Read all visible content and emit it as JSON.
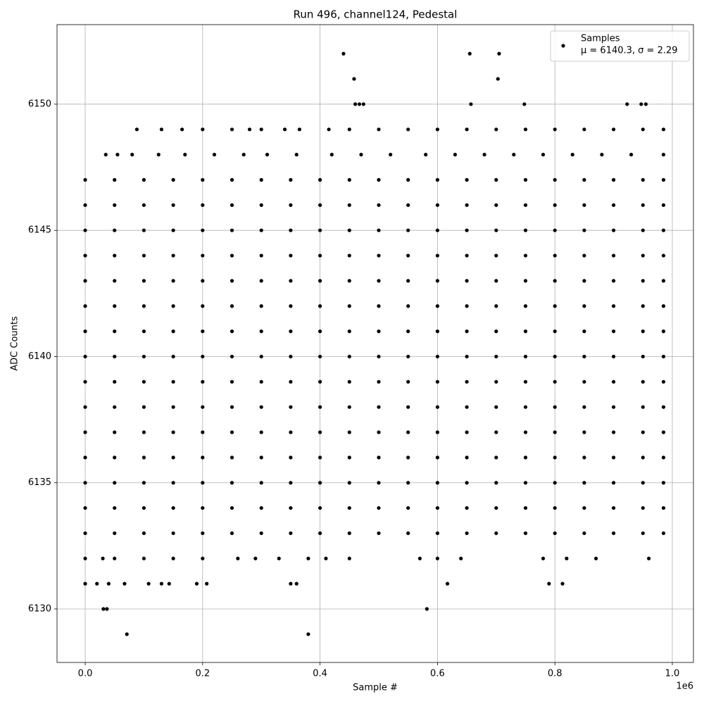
{
  "chart_data": {
    "type": "scatter",
    "title": "Run 496, channel124, Pedestal",
    "x_label": "Sample #",
    "y_label": "ADC Counts",
    "x_offset_label": "1e6",
    "legend_note": "μ = 6140.3, σ = 2.29",
    "legend_loc": "upper right",
    "grid": true,
    "xlim": [
      -0.048,
      1.036
    ],
    "ylim": [
      6127.88,
      6153.15
    ],
    "xticks": [
      {
        "value": 0,
        "label": "0.0"
      },
      0.2,
      0.4,
      0.6,
      0.8,
      {
        "value": 1,
        "label": "1.0"
      }
    ],
    "yticks": [
      6130,
      6135,
      6140,
      6145,
      6150
    ],
    "series": [
      {
        "name": "Samples",
        "color": "#000000",
        "x": [
          0.071,
          0.38,
          0.031,
          0.037,
          0.582,
          0,
          0.02,
          0.04,
          0.067,
          0.108,
          0.13,
          0.143,
          0.19,
          0.207,
          0.35,
          0.36,
          0.617,
          0.79,
          0.813,
          0,
          0.03,
          0.05,
          0.1,
          0.15,
          0.2,
          0.26,
          0.29,
          0.33,
          0.38,
          0.41,
          0.45,
          0.57,
          0.6,
          0.64,
          0.78,
          0.82,
          0.87,
          0.96,
          0,
          0.05,
          0.1,
          0.15,
          0.2,
          0.25,
          0.3,
          0.35,
          0.4,
          0.45,
          0.5,
          0.55,
          0.6,
          0.65,
          0.7,
          0.75,
          0.8,
          0.85,
          0.9,
          0.95,
          0.985,
          0,
          0.05,
          0.1,
          0.15,
          0.2,
          0.25,
          0.3,
          0.35,
          0.4,
          0.45,
          0.5,
          0.55,
          0.6,
          0.65,
          0.7,
          0.75,
          0.8,
          0.85,
          0.9,
          0.95,
          0.985,
          0,
          0.05,
          0.1,
          0.15,
          0.2,
          0.25,
          0.3,
          0.35,
          0.4,
          0.45,
          0.5,
          0.55,
          0.6,
          0.65,
          0.7,
          0.75,
          0.8,
          0.85,
          0.9,
          0.95,
          0.985,
          0,
          0.05,
          0.1,
          0.15,
          0.2,
          0.25,
          0.3,
          0.35,
          0.4,
          0.45,
          0.5,
          0.55,
          0.6,
          0.65,
          0.7,
          0.75,
          0.8,
          0.85,
          0.9,
          0.95,
          0.985,
          0,
          0.05,
          0.1,
          0.15,
          0.2,
          0.25,
          0.3,
          0.35,
          0.4,
          0.45,
          0.5,
          0.55,
          0.6,
          0.65,
          0.7,
          0.75,
          0.8,
          0.85,
          0.9,
          0.95,
          0.985,
          0,
          0.05,
          0.1,
          0.15,
          0.2,
          0.25,
          0.3,
          0.35,
          0.4,
          0.45,
          0.5,
          0.55,
          0.6,
          0.65,
          0.7,
          0.75,
          0.8,
          0.85,
          0.9,
          0.95,
          0.985,
          0,
          0.05,
          0.1,
          0.15,
          0.2,
          0.25,
          0.3,
          0.35,
          0.4,
          0.45,
          0.5,
          0.55,
          0.6,
          0.65,
          0.7,
          0.75,
          0.8,
          0.85,
          0.9,
          0.95,
          0.985,
          0,
          0.05,
          0.1,
          0.15,
          0.2,
          0.25,
          0.3,
          0.35,
          0.4,
          0.45,
          0.5,
          0.55,
          0.6,
          0.65,
          0.7,
          0.75,
          0.8,
          0.85,
          0.9,
          0.95,
          0.985,
          0,
          0.05,
          0.1,
          0.15,
          0.2,
          0.25,
          0.3,
          0.35,
          0.4,
          0.45,
          0.5,
          0.55,
          0.6,
          0.65,
          0.7,
          0.75,
          0.8,
          0.85,
          0.9,
          0.95,
          0.985,
          0,
          0.05,
          0.1,
          0.15,
          0.2,
          0.25,
          0.3,
          0.35,
          0.4,
          0.45,
          0.5,
          0.55,
          0.6,
          0.65,
          0.7,
          0.75,
          0.8,
          0.85,
          0.9,
          0.95,
          0.985,
          0,
          0.05,
          0.1,
          0.15,
          0.2,
          0.25,
          0.3,
          0.35,
          0.4,
          0.45,
          0.5,
          0.55,
          0.6,
          0.65,
          0.7,
          0.75,
          0.8,
          0.85,
          0.9,
          0.95,
          0.985,
          0,
          0.05,
          0.1,
          0.15,
          0.2,
          0.25,
          0.3,
          0.35,
          0.4,
          0.45,
          0.5,
          0.55,
          0.6,
          0.65,
          0.7,
          0.75,
          0.8,
          0.85,
          0.9,
          0.95,
          0.985,
          0,
          0.05,
          0.1,
          0.15,
          0.2,
          0.25,
          0.3,
          0.35,
          0.4,
          0.45,
          0.5,
          0.55,
          0.6,
          0.65,
          0.7,
          0.75,
          0.8,
          0.85,
          0.9,
          0.95,
          0.985,
          0,
          0.05,
          0.1,
          0.15,
          0.2,
          0.25,
          0.3,
          0.35,
          0.4,
          0.45,
          0.5,
          0.55,
          0.6,
          0.65,
          0.7,
          0.75,
          0.8,
          0.85,
          0.9,
          0.95,
          0.985,
          0,
          0.05,
          0.1,
          0.15,
          0.2,
          0.25,
          0.3,
          0.35,
          0.4,
          0.45,
          0.5,
          0.55,
          0.6,
          0.65,
          0.7,
          0.75,
          0.8,
          0.85,
          0.9,
          0.95,
          0.985,
          0.035,
          0.055,
          0.08,
          0.125,
          0.17,
          0.22,
          0.27,
          0.31,
          0.36,
          0.42,
          0.47,
          0.52,
          0.58,
          0.63,
          0.68,
          0.73,
          0.78,
          0.83,
          0.88,
          0.93,
          0.985,
          0.088,
          0.13,
          0.165,
          0.2,
          0.25,
          0.28,
          0.3,
          0.34,
          0.365,
          0.415,
          0.45,
          0.5,
          0.55,
          0.6,
          0.65,
          0.7,
          0.75,
          0.8,
          0.85,
          0.9,
          0.95,
          0.985,
          0.46,
          0.467,
          0.474,
          0.657,
          0.748,
          0.923,
          0.947,
          0.955,
          0.458,
          0.703,
          0.44,
          0.655,
          0.705
        ],
        "values": [
          6129,
          6129,
          6130,
          6130,
          6130,
          6131,
          6131,
          6131,
          6131,
          6131,
          6131,
          6131,
          6131,
          6131,
          6131,
          6131,
          6131,
          6131,
          6131,
          6132,
          6132,
          6132,
          6132,
          6132,
          6132,
          6132,
          6132,
          6132,
          6132,
          6132,
          6132,
          6132,
          6132,
          6132,
          6132,
          6132,
          6132,
          6132,
          6133,
          6133,
          6133,
          6133,
          6133,
          6133,
          6133,
          6133,
          6133,
          6133,
          6133,
          6133,
          6133,
          6133,
          6133,
          6133,
          6133,
          6133,
          6133,
          6133,
          6133,
          6134,
          6134,
          6134,
          6134,
          6134,
          6134,
          6134,
          6134,
          6134,
          6134,
          6134,
          6134,
          6134,
          6134,
          6134,
          6134,
          6134,
          6134,
          6134,
          6134,
          6134,
          6135,
          6135,
          6135,
          6135,
          6135,
          6135,
          6135,
          6135,
          6135,
          6135,
          6135,
          6135,
          6135,
          6135,
          6135,
          6135,
          6135,
          6135,
          6135,
          6135,
          6135,
          6136,
          6136,
          6136,
          6136,
          6136,
          6136,
          6136,
          6136,
          6136,
          6136,
          6136,
          6136,
          6136,
          6136,
          6136,
          6136,
          6136,
          6136,
          6136,
          6136,
          6136,
          6137,
          6137,
          6137,
          6137,
          6137,
          6137,
          6137,
          6137,
          6137,
          6137,
          6137,
          6137,
          6137,
          6137,
          6137,
          6137,
          6137,
          6137,
          6137,
          6137,
          6137,
          6138,
          6138,
          6138,
          6138,
          6138,
          6138,
          6138,
          6138,
          6138,
          6138,
          6138,
          6138,
          6138,
          6138,
          6138,
          6138,
          6138,
          6138,
          6138,
          6138,
          6138,
          6139,
          6139,
          6139,
          6139,
          6139,
          6139,
          6139,
          6139,
          6139,
          6139,
          6139,
          6139,
          6139,
          6139,
          6139,
          6139,
          6139,
          6139,
          6139,
          6139,
          6139,
          6140,
          6140,
          6140,
          6140,
          6140,
          6140,
          6140,
          6140,
          6140,
          6140,
          6140,
          6140,
          6140,
          6140,
          6140,
          6140,
          6140,
          6140,
          6140,
          6140,
          6140,
          6141,
          6141,
          6141,
          6141,
          6141,
          6141,
          6141,
          6141,
          6141,
          6141,
          6141,
          6141,
          6141,
          6141,
          6141,
          6141,
          6141,
          6141,
          6141,
          6141,
          6141,
          6142,
          6142,
          6142,
          6142,
          6142,
          6142,
          6142,
          6142,
          6142,
          6142,
          6142,
          6142,
          6142,
          6142,
          6142,
          6142,
          6142,
          6142,
          6142,
          6142,
          6142,
          6143,
          6143,
          6143,
          6143,
          6143,
          6143,
          6143,
          6143,
          6143,
          6143,
          6143,
          6143,
          6143,
          6143,
          6143,
          6143,
          6143,
          6143,
          6143,
          6143,
          6143,
          6144,
          6144,
          6144,
          6144,
          6144,
          6144,
          6144,
          6144,
          6144,
          6144,
          6144,
          6144,
          6144,
          6144,
          6144,
          6144,
          6144,
          6144,
          6144,
          6144,
          6144,
          6145,
          6145,
          6145,
          6145,
          6145,
          6145,
          6145,
          6145,
          6145,
          6145,
          6145,
          6145,
          6145,
          6145,
          6145,
          6145,
          6145,
          6145,
          6145,
          6145,
          6145,
          6146,
          6146,
          6146,
          6146,
          6146,
          6146,
          6146,
          6146,
          6146,
          6146,
          6146,
          6146,
          6146,
          6146,
          6146,
          6146,
          6146,
          6146,
          6146,
          6146,
          6146,
          6147,
          6147,
          6147,
          6147,
          6147,
          6147,
          6147,
          6147,
          6147,
          6147,
          6147,
          6147,
          6147,
          6147,
          6147,
          6147,
          6147,
          6147,
          6147,
          6147,
          6147,
          6148,
          6148,
          6148,
          6148,
          6148,
          6148,
          6148,
          6148,
          6148,
          6148,
          6148,
          6148,
          6148,
          6148,
          6148,
          6148,
          6148,
          6148,
          6148,
          6148,
          6148,
          6149,
          6149,
          6149,
          6149,
          6149,
          6149,
          6149,
          6149,
          6149,
          6149,
          6149,
          6149,
          6149,
          6149,
          6149,
          6149,
          6149,
          6149,
          6149,
          6149,
          6149,
          6149,
          6150,
          6150,
          6150,
          6150,
          6150,
          6150,
          6150,
          6150,
          6151,
          6151,
          6152,
          6152,
          6152
        ]
      }
    ]
  }
}
